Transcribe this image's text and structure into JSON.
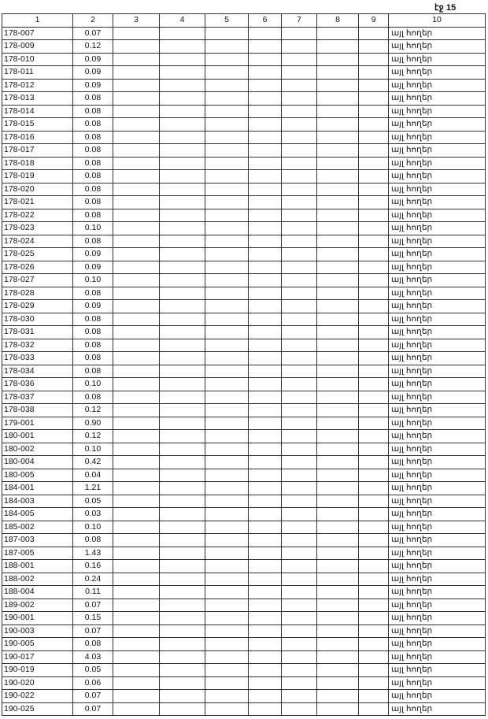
{
  "page_label": "էջ 15",
  "columns": [
    "1",
    "2",
    "3",
    "4",
    "5",
    "6",
    "7",
    "8",
    "9",
    "10"
  ],
  "land_type": "այլ հողեր",
  "rows": [
    [
      "178-007",
      "0.07"
    ],
    [
      "178-009",
      "0.12"
    ],
    [
      "178-010",
      "0.09"
    ],
    [
      "178-011",
      "0.09"
    ],
    [
      "178-012",
      "0.09"
    ],
    [
      "178-013",
      "0.08"
    ],
    [
      "178-014",
      "0.08"
    ],
    [
      "178-015",
      "0.08"
    ],
    [
      "178-016",
      "0.08"
    ],
    [
      "178-017",
      "0.08"
    ],
    [
      "178-018",
      "0.08"
    ],
    [
      "178-019",
      "0.08"
    ],
    [
      "178-020",
      "0.08"
    ],
    [
      "178-021",
      "0.08"
    ],
    [
      "178-022",
      "0.08"
    ],
    [
      "178-023",
      "0.10"
    ],
    [
      "178-024",
      "0.08"
    ],
    [
      "178-025",
      "0.09"
    ],
    [
      "178-026",
      "0.09"
    ],
    [
      "178-027",
      "0.10"
    ],
    [
      "178-028",
      "0.08"
    ],
    [
      "178-029",
      "0.09"
    ],
    [
      "178-030",
      "0.08"
    ],
    [
      "178-031",
      "0.08"
    ],
    [
      "178-032",
      "0.08"
    ],
    [
      "178-033",
      "0.08"
    ],
    [
      "178-034",
      "0.08"
    ],
    [
      "178-036",
      "0.10"
    ],
    [
      "178-037",
      "0.08"
    ],
    [
      "178-038",
      "0.12"
    ],
    [
      "179-001",
      "0.90"
    ],
    [
      "180-001",
      "0.12"
    ],
    [
      "180-002",
      "0.10"
    ],
    [
      "180-004",
      "0.42"
    ],
    [
      "180-005",
      "0.04"
    ],
    [
      "184-001",
      "1.21"
    ],
    [
      "184-003",
      "0.05"
    ],
    [
      "184-005",
      "0.03"
    ],
    [
      "185-002",
      "0.10"
    ],
    [
      "187-003",
      "0.08"
    ],
    [
      "187-005",
      "1.43"
    ],
    [
      "188-001",
      "0.16"
    ],
    [
      "188-002",
      "0.24"
    ],
    [
      "188-004",
      "0.11"
    ],
    [
      "189-002",
      "0.07"
    ],
    [
      "190-001",
      "0.15"
    ],
    [
      "190-003",
      "0.07"
    ],
    [
      "190-005",
      "0.08"
    ],
    [
      "190-017",
      "4.03"
    ],
    [
      "190-019",
      "0.05"
    ],
    [
      "190-020",
      "0.06"
    ],
    [
      "190-022",
      "0.07"
    ],
    [
      "190-025",
      "0.07"
    ]
  ]
}
